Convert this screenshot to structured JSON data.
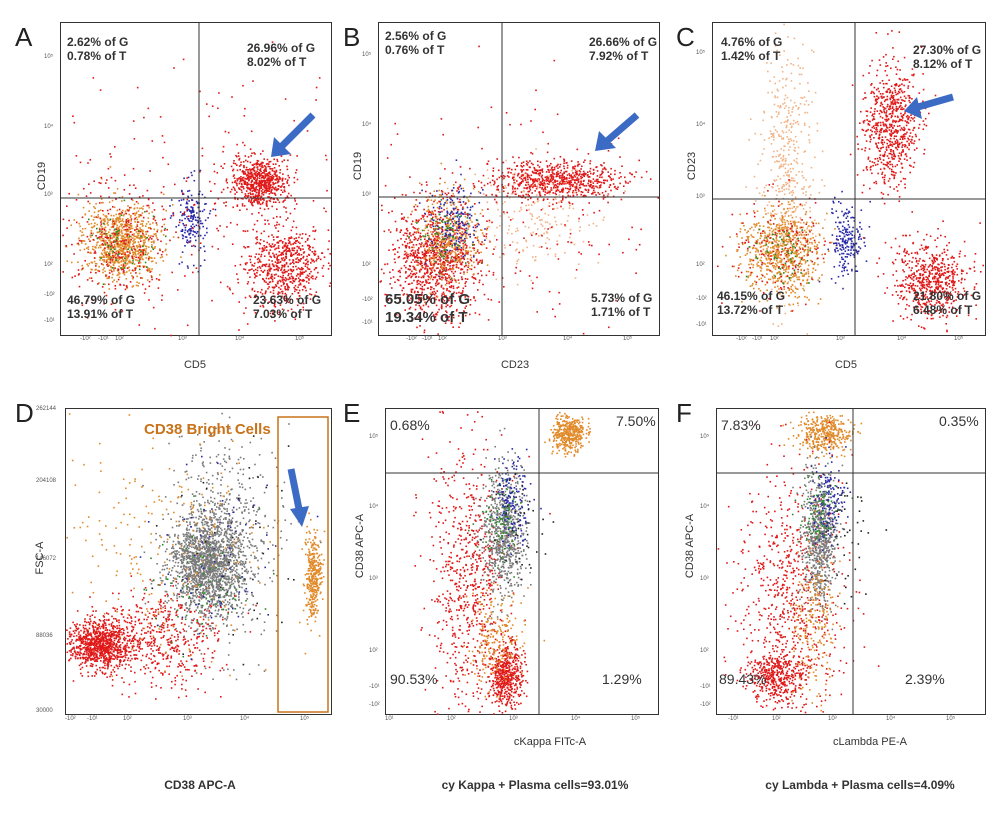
{
  "colors": {
    "red": "#e01818",
    "orange": "#e08a2a",
    "peach": "#f0b488",
    "blue": "#2a2aa8",
    "green": "#2a8a2a",
    "gray": "#7a7a7a",
    "black": "#222222",
    "arrow": "#3b6bc4",
    "gate": "#c8731a"
  },
  "chart_data": [
    {
      "id": "A",
      "type": "scatter",
      "label": "A",
      "xlabel": "CD5",
      "ylabel": "CD19",
      "quadrants": {
        "ul": [
          "2.62% of G",
          "0.78% of T"
        ],
        "ur": [
          "26.96% of G",
          "8.02% of T"
        ],
        "ll": [
          "46.79% of G",
          "13.91% of T"
        ],
        "lr": [
          "23.63% of G",
          "7.03% of T"
        ]
      },
      "xticks": [
        "-10²",
        "-10¹",
        "10²",
        "10³",
        "10⁴",
        "10⁵"
      ],
      "yticks": [
        "10⁵",
        "10⁴",
        "10³",
        "10²",
        "-10²",
        "-10¹"
      ],
      "populations": [
        {
          "color": "orange",
          "cx": 0.22,
          "cy": 0.7,
          "sx": 0.07,
          "sy": 0.06,
          "n": 900
        },
        {
          "color": "red",
          "cx": 0.22,
          "cy": 0.7,
          "sx": 0.09,
          "sy": 0.09,
          "n": 250
        },
        {
          "color": "green",
          "cx": 0.22,
          "cy": 0.7,
          "sx": 0.06,
          "sy": 0.06,
          "n": 60
        },
        {
          "color": "blue",
          "cx": 0.48,
          "cy": 0.62,
          "sx": 0.03,
          "sy": 0.06,
          "n": 180
        },
        {
          "color": "red",
          "cx": 0.73,
          "cy": 0.51,
          "sx": 0.05,
          "sy": 0.04,
          "n": 650
        },
        {
          "color": "red",
          "cx": 0.82,
          "cy": 0.78,
          "sx": 0.07,
          "sy": 0.07,
          "n": 650
        },
        {
          "color": "red",
          "cx": 0.5,
          "cy": 0.55,
          "sx": 0.3,
          "sy": 0.25,
          "n": 250
        }
      ]
    },
    {
      "id": "B",
      "type": "scatter",
      "label": "B",
      "xlabel": "CD23",
      "ylabel": "CD19",
      "quadrants": {
        "ul": [
          "2.56% of G",
          "0.76% of T"
        ],
        "ur": [
          "26.66% of G",
          "7.92% of T"
        ],
        "ll": [
          "65.05% of G",
          "19.34% of T"
        ],
        "lr": [
          "5.73% of G",
          "1.71% of T"
        ]
      },
      "xticks": [
        "-10²",
        "-10¹",
        "10²",
        "10³",
        "10⁴",
        "10⁵"
      ],
      "yticks": [
        "10⁵",
        "10⁴",
        "10³",
        "10²",
        "-10²",
        "-10¹"
      ],
      "populations": [
        {
          "color": "red",
          "cx": 0.2,
          "cy": 0.76,
          "sx": 0.08,
          "sy": 0.09,
          "n": 1000
        },
        {
          "color": "orange",
          "cx": 0.24,
          "cy": 0.68,
          "sx": 0.06,
          "sy": 0.07,
          "n": 350
        },
        {
          "color": "blue",
          "cx": 0.27,
          "cy": 0.64,
          "sx": 0.05,
          "sy": 0.06,
          "n": 160
        },
        {
          "color": "green",
          "cx": 0.24,
          "cy": 0.68,
          "sx": 0.05,
          "sy": 0.05,
          "n": 80
        },
        {
          "color": "red",
          "cx": 0.64,
          "cy": 0.5,
          "sx": 0.12,
          "sy": 0.03,
          "n": 700
        },
        {
          "color": "peach",
          "cx": 0.55,
          "cy": 0.63,
          "sx": 0.12,
          "sy": 0.08,
          "n": 200
        },
        {
          "color": "red",
          "cx": 0.45,
          "cy": 0.62,
          "sx": 0.28,
          "sy": 0.2,
          "n": 200
        }
      ]
    },
    {
      "id": "C",
      "type": "scatter",
      "label": "C",
      "xlabel": "CD5",
      "ylabel": "CD23",
      "quadrants": {
        "ul": [
          "4.76% of G",
          "1.42% of T"
        ],
        "ur": [
          "27.30% of G",
          "8.12% of T"
        ],
        "ll": [
          "46.15% of G",
          "13.72% of T"
        ],
        "lr": [
          "21.80% of G",
          "6.48% of T"
        ]
      },
      "xticks": [
        "-10²",
        "-10¹",
        "10²",
        "10³",
        "10⁴",
        "10⁵"
      ],
      "yticks": [
        "10⁵",
        "10⁴",
        "10³",
        "10²",
        "-10²",
        "-10¹"
      ],
      "populations": [
        {
          "color": "peach",
          "cx": 0.27,
          "cy": 0.45,
          "sx": 0.05,
          "sy": 0.2,
          "n": 450
        },
        {
          "color": "orange",
          "cx": 0.25,
          "cy": 0.73,
          "sx": 0.07,
          "sy": 0.07,
          "n": 700
        },
        {
          "color": "green",
          "cx": 0.25,
          "cy": 0.73,
          "sx": 0.05,
          "sy": 0.05,
          "n": 60
        },
        {
          "color": "red",
          "cx": 0.25,
          "cy": 0.73,
          "sx": 0.09,
          "sy": 0.09,
          "n": 150
        },
        {
          "color": "blue",
          "cx": 0.49,
          "cy": 0.7,
          "sx": 0.03,
          "sy": 0.06,
          "n": 200
        },
        {
          "color": "red",
          "cx": 0.65,
          "cy": 0.33,
          "sx": 0.05,
          "sy": 0.1,
          "n": 700
        },
        {
          "color": "red",
          "cx": 0.8,
          "cy": 0.82,
          "sx": 0.07,
          "sy": 0.06,
          "n": 600
        }
      ]
    },
    {
      "id": "D",
      "type": "scatter",
      "label": "D",
      "xlabel": "",
      "ylabel": "FSC-A",
      "caption": "CD38 APC-A",
      "gate_label": "CD38 Bright Cells",
      "yticks": [
        "262144",
        "204108",
        "146072",
        "88036",
        "30000"
      ],
      "xticks": [
        "-10²",
        "-10¹",
        "10²",
        "10³",
        "10⁴",
        "10⁵"
      ],
      "populations": [
        {
          "color": "gray",
          "cx": 0.53,
          "cy": 0.5,
          "sx": 0.07,
          "sy": 0.08,
          "n": 1600
        },
        {
          "color": "gray",
          "cx": 0.6,
          "cy": 0.42,
          "sx": 0.1,
          "sy": 0.18,
          "n": 500
        },
        {
          "color": "red",
          "cx": 0.12,
          "cy": 0.77,
          "sx": 0.06,
          "sy": 0.04,
          "n": 900
        },
        {
          "color": "red",
          "cx": 0.35,
          "cy": 0.75,
          "sx": 0.12,
          "sy": 0.08,
          "n": 500
        },
        {
          "color": "orange",
          "cx": 0.35,
          "cy": 0.45,
          "sx": 0.2,
          "sy": 0.2,
          "n": 250
        },
        {
          "color": "orange",
          "cx": 0.93,
          "cy": 0.55,
          "sx": 0.015,
          "sy": 0.07,
          "n": 350
        },
        {
          "color": "green",
          "cx": 0.5,
          "cy": 0.58,
          "sx": 0.1,
          "sy": 0.1,
          "n": 70
        },
        {
          "color": "blue",
          "cx": 0.55,
          "cy": 0.5,
          "sx": 0.12,
          "sy": 0.15,
          "n": 70
        },
        {
          "color": "black",
          "cx": 0.6,
          "cy": 0.45,
          "sx": 0.15,
          "sy": 0.2,
          "n": 40
        }
      ]
    },
    {
      "id": "E",
      "type": "scatter",
      "label": "E",
      "xlabel": "cKappa FITc-A",
      "ylabel": "CD38 APC-A",
      "caption": "cy Kappa + Plasma cells=93.01%",
      "quadrants": {
        "ul": [
          "0.68%"
        ],
        "ur": [
          "7.50%"
        ],
        "ll": [
          "90.53%"
        ],
        "lr": [
          "1.29%"
        ]
      },
      "xticks": [
        "10¹",
        "10²",
        "10³",
        "10⁴",
        "10⁵"
      ],
      "yticks": [
        "10⁵",
        "10⁴",
        "10³",
        "10²",
        "-10¹",
        "-10²"
      ],
      "populations": [
        {
          "color": "orange",
          "cx": 0.67,
          "cy": 0.08,
          "sx": 0.03,
          "sy": 0.03,
          "n": 400
        },
        {
          "color": "red",
          "cx": 0.3,
          "cy": 0.55,
          "sx": 0.07,
          "sy": 0.23,
          "n": 700
        },
        {
          "color": "red",
          "cx": 0.44,
          "cy": 0.87,
          "sx": 0.03,
          "sy": 0.05,
          "n": 500
        },
        {
          "color": "gray",
          "cx": 0.43,
          "cy": 0.4,
          "sx": 0.04,
          "sy": 0.1,
          "n": 700
        },
        {
          "color": "blue",
          "cx": 0.46,
          "cy": 0.3,
          "sx": 0.03,
          "sy": 0.07,
          "n": 150
        },
        {
          "color": "green",
          "cx": 0.42,
          "cy": 0.35,
          "sx": 0.04,
          "sy": 0.06,
          "n": 80
        },
        {
          "color": "orange",
          "cx": 0.4,
          "cy": 0.75,
          "sx": 0.05,
          "sy": 0.08,
          "n": 200
        },
        {
          "color": "black",
          "cx": 0.5,
          "cy": 0.4,
          "sx": 0.05,
          "sy": 0.1,
          "n": 40
        }
      ]
    },
    {
      "id": "F",
      "type": "scatter",
      "label": "F",
      "xlabel": "cLambda PE-A",
      "ylabel": "CD38 APC-A",
      "caption": "cy Lambda + Plasma cells=4.09%",
      "quadrants": {
        "ul": [
          "7.83%"
        ],
        "ur": [
          "0.35%"
        ],
        "ll": [
          "89.43%"
        ],
        "lr": [
          "2.39%"
        ]
      },
      "xticks": [
        "-10¹",
        "10²",
        "10³",
        "10⁴",
        "10⁵"
      ],
      "yticks": [
        "10⁵",
        "10⁴",
        "10³",
        "10²",
        "-10¹",
        "-10²"
      ],
      "populations": [
        {
          "color": "orange",
          "cx": 0.4,
          "cy": 0.08,
          "sx": 0.05,
          "sy": 0.03,
          "n": 400
        },
        {
          "color": "red",
          "cx": 0.27,
          "cy": 0.6,
          "sx": 0.1,
          "sy": 0.2,
          "n": 700
        },
        {
          "color": "red",
          "cx": 0.22,
          "cy": 0.88,
          "sx": 0.05,
          "sy": 0.04,
          "n": 400
        },
        {
          "color": "gray",
          "cx": 0.38,
          "cy": 0.42,
          "sx": 0.03,
          "sy": 0.11,
          "n": 700
        },
        {
          "color": "blue",
          "cx": 0.41,
          "cy": 0.3,
          "sx": 0.03,
          "sy": 0.07,
          "n": 150
        },
        {
          "color": "green",
          "cx": 0.37,
          "cy": 0.35,
          "sx": 0.04,
          "sy": 0.06,
          "n": 80
        },
        {
          "color": "orange",
          "cx": 0.36,
          "cy": 0.7,
          "sx": 0.04,
          "sy": 0.12,
          "n": 200
        },
        {
          "color": "black",
          "cx": 0.5,
          "cy": 0.42,
          "sx": 0.05,
          "sy": 0.1,
          "n": 40
        }
      ]
    }
  ]
}
